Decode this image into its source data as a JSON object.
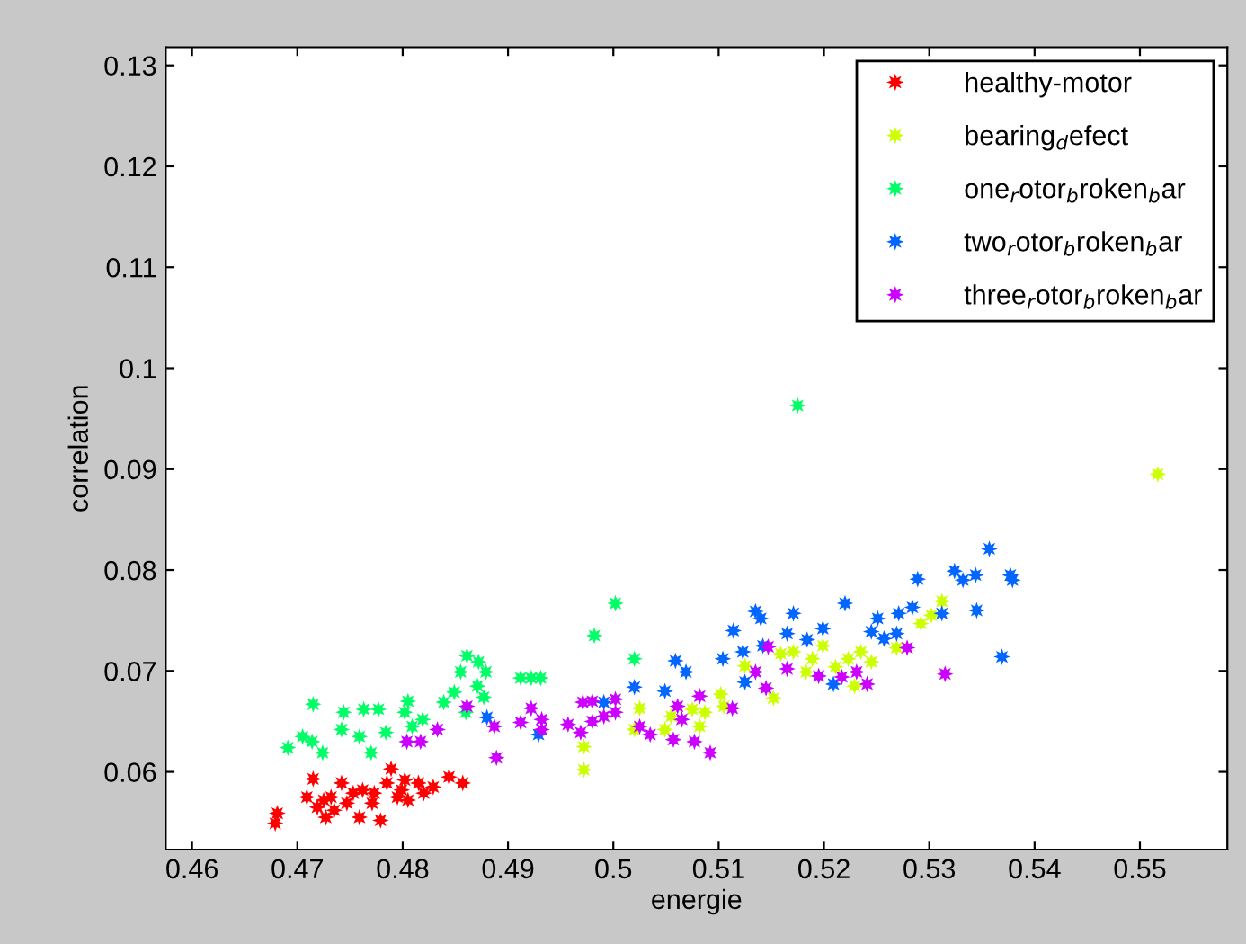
{
  "chart_data": {
    "type": "scatter",
    "xlabel": "energie",
    "ylabel": "correlation",
    "xlim": [
      0.4575,
      0.5583
    ],
    "ylim": [
      0.0523,
      0.1318
    ],
    "xticks": [
      0.46,
      0.47,
      0.48,
      0.49,
      0.5,
      0.51,
      0.52,
      0.53,
      0.54,
      0.55
    ],
    "yticks": [
      0.06,
      0.07,
      0.08,
      0.09,
      0.1,
      0.11,
      0.12,
      0.13
    ],
    "grid": false,
    "legend": "top right",
    "marker": "star",
    "series": [
      {
        "name": "healthy-motor",
        "color": "#ff0000",
        "x": [
          0.4679,
          0.4681,
          0.4715,
          0.4709,
          0.4719,
          0.4727,
          0.4732,
          0.4742,
          0.4747,
          0.4759,
          0.4762,
          0.4771,
          0.4779,
          0.4785,
          0.4789,
          0.4795,
          0.4802,
          0.4805,
          0.4815,
          0.482,
          0.4829,
          0.4844,
          0.4857,
          0.4735,
          0.4753,
          0.4773,
          0.4725,
          0.4799
        ],
        "values": [
          0.0549,
          0.0559,
          0.0593,
          0.0575,
          0.0565,
          0.0555,
          0.0575,
          0.0589,
          0.0569,
          0.0555,
          0.0582,
          0.0569,
          0.0552,
          0.0589,
          0.0603,
          0.0575,
          0.0592,
          0.0572,
          0.0589,
          0.0579,
          0.0585,
          0.0595,
          0.0589,
          0.0562,
          0.0579,
          0.0579,
          0.0572,
          0.0582
        ]
      },
      {
        "name": "bearing$_{d}$efect",
        "color": "#ccff00",
        "x": [
          0.4972,
          0.4972,
          0.5025,
          0.502,
          0.5049,
          0.5055,
          0.5075,
          0.5082,
          0.5087,
          0.5102,
          0.5105,
          0.5125,
          0.5152,
          0.5159,
          0.5171,
          0.5183,
          0.5189,
          0.5199,
          0.5211,
          0.5223,
          0.5229,
          0.5235,
          0.5245,
          null,
          0.5269,
          0.5292,
          0.5302,
          0.5312,
          0.5517
        ],
        "values": [
          0.0602,
          0.0625,
          0.0663,
          0.0642,
          0.0642,
          0.0655,
          0.0662,
          0.0645,
          0.0659,
          0.0677,
          0.0665,
          0.0705,
          0.0673,
          0.0717,
          0.0719,
          0.0699,
          0.0712,
          0.0725,
          0.0704,
          0.0712,
          0.0685,
          0.0719,
          0.0709,
          null,
          0.0723,
          0.0747,
          0.0755,
          0.0769,
          0.0895
        ]
      },
      {
        "name": "one$_{r}$otor$_{b}$roken$_{b}$ar",
        "color": "#00ff66",
        "x": [
          0.4691,
          0.4705,
          0.4715,
          0.4714,
          0.4724,
          0.4742,
          0.4744,
          0.4759,
          0.4763,
          0.477,
          0.4777,
          0.4784,
          0.4802,
          0.4805,
          0.4809,
          0.4819,
          0.4839,
          0.4849,
          0.4855,
          0.486,
          0.4861,
          0.4872,
          0.4871,
          0.4879,
          0.4877,
          0.4912,
          0.4922,
          0.4931,
          0.4982,
          0.5002,
          0.502,
          0.5175
        ],
        "values": [
          0.0624,
          0.0635,
          0.0667,
          0.063,
          0.0619,
          0.0642,
          0.0659,
          0.0635,
          0.0662,
          0.0619,
          0.0662,
          0.0639,
          0.0659,
          0.067,
          0.0645,
          0.0652,
          0.0669,
          0.0679,
          0.0699,
          0.0659,
          0.0715,
          0.0709,
          0.0685,
          0.0699,
          0.0674,
          0.0693,
          0.0693,
          0.0693,
          0.0735,
          0.0767,
          0.0712,
          0.0963
        ]
      },
      {
        "name": "two$_{r}$otor$_{b}$roken$_{b}$ar",
        "color": "#0066ff",
        "x": [
          0.488,
          0.4929,
          0.4991,
          0.502,
          null,
          0.5049,
          0.5059,
          0.5069,
          0.5104,
          0.5114,
          0.5123,
          0.5125,
          0.5135,
          0.514,
          0.5142,
          0.5165,
          0.5171,
          0.5184,
          0.5199,
          0.5209,
          0.522,
          0.5245,
          0.5251,
          0.5257,
          0.5269,
          0.5271,
          0.5284,
          0.5289,
          0.5312,
          0.5324,
          0.5332,
          0.5344,
          0.5345,
          0.5357,
          0.5369,
          0.5377,
          0.5379
        ],
        "values": [
          0.0654,
          0.0637,
          0.0669,
          0.0684,
          null,
          0.068,
          0.071,
          0.0699,
          0.0712,
          0.074,
          0.0719,
          0.0689,
          0.0759,
          0.0752,
          0.0725,
          0.0737,
          0.0757,
          0.0731,
          0.0742,
          0.0687,
          0.0767,
          0.0739,
          0.0752,
          0.0732,
          0.0737,
          0.0757,
          0.0763,
          0.0791,
          0.0757,
          0.0799,
          0.079,
          0.0795,
          0.076,
          0.0821,
          0.0714,
          0.0795,
          0.079
        ]
      },
      {
        "name": "three$_{r}$otor$_{b}$roken$_{b}$ar",
        "color": "#cc00ff",
        "x": [
          0.4804,
          0.4817,
          0.4833,
          0.4861,
          0.4887,
          0.4889,
          0.4912,
          0.4922,
          0.4932,
          0.4932,
          0.4957,
          0.4969,
          0.4971,
          0.498,
          0.498,
          0.4991,
          0.5002,
          0.5002,
          0.5025,
          0.5035,
          0.5057,
          0.5061,
          0.5065,
          0.5077,
          0.5082,
          0.5092,
          0.5113,
          0.5135,
          0.5145,
          0.5147,
          0.5165,
          0.5195,
          0.5217,
          0.5231,
          0.5241,
          0.5279,
          0.5315
        ],
        "values": [
          0.063,
          0.063,
          0.0642,
          0.0665,
          0.0645,
          0.0614,
          0.0649,
          0.0663,
          0.0652,
          0.0642,
          0.0647,
          0.0639,
          0.0669,
          0.067,
          0.065,
          0.0655,
          0.0672,
          0.0659,
          0.0645,
          0.0637,
          0.0632,
          0.0665,
          0.0652,
          0.063,
          0.0675,
          0.0619,
          0.0663,
          0.0699,
          0.0683,
          0.0724,
          0.0702,
          0.0695,
          0.0694,
          0.0699,
          0.0687,
          0.0723,
          0.0697
        ]
      }
    ]
  }
}
